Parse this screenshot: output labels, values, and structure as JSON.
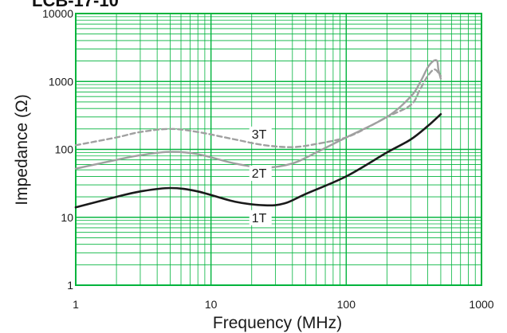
{
  "page": {
    "title_fragment": "LCB-17-10"
  },
  "chart_data": {
    "type": "line",
    "xscale": "log",
    "yscale": "log",
    "xlim": [
      1,
      1000
    ],
    "ylim": [
      1,
      10000
    ],
    "xlabel": "Frequency (MHz)",
    "ylabel": "Impedance (Ω)",
    "grid": true,
    "x_ticks": [
      "1",
      "10",
      "100",
      "1000"
    ],
    "y_ticks": [
      "1",
      "10",
      "100",
      "1000",
      "10000"
    ],
    "colors": {
      "grid": "#00b33c",
      "frame": "#00b33c",
      "series_1T": "#1a1a1a",
      "series_2T": "#a0a0a0",
      "series_3T": "#a0a0a0"
    },
    "series": [
      {
        "name": "1T",
        "style": "solid",
        "points": [
          [
            1,
            14
          ],
          [
            2,
            20
          ],
          [
            3,
            24
          ],
          [
            5,
            27
          ],
          [
            8,
            24
          ],
          [
            15,
            17
          ],
          [
            25,
            15
          ],
          [
            35,
            16
          ],
          [
            50,
            22
          ],
          [
            100,
            40
          ],
          [
            200,
            90
          ],
          [
            300,
            140
          ],
          [
            400,
            220
          ],
          [
            500,
            330
          ]
        ]
      },
      {
        "name": "2T",
        "style": "solid",
        "points": [
          [
            1,
            52
          ],
          [
            2,
            70
          ],
          [
            3,
            82
          ],
          [
            5,
            92
          ],
          [
            8,
            85
          ],
          [
            15,
            62
          ],
          [
            25,
            54
          ],
          [
            40,
            62
          ],
          [
            60,
            90
          ],
          [
            100,
            150
          ],
          [
            200,
            300
          ],
          [
            300,
            600
          ],
          [
            350,
            950
          ],
          [
            400,
            1600
          ],
          [
            440,
            2000
          ],
          [
            470,
            2000
          ],
          [
            480,
            1500
          ],
          [
            500,
            1100
          ]
        ]
      },
      {
        "name": "3T",
        "style": "dashed",
        "points": [
          [
            1,
            115
          ],
          [
            2,
            150
          ],
          [
            3,
            180
          ],
          [
            5,
            200
          ],
          [
            8,
            180
          ],
          [
            15,
            140
          ],
          [
            25,
            115
          ],
          [
            40,
            108
          ],
          [
            60,
            120
          ],
          [
            100,
            150
          ],
          [
            150,
            220
          ],
          [
            200,
            300
          ],
          [
            300,
            450
          ],
          [
            350,
            750
          ],
          [
            400,
            1200
          ],
          [
            450,
            1500
          ],
          [
            500,
            1200
          ]
        ]
      }
    ]
  }
}
